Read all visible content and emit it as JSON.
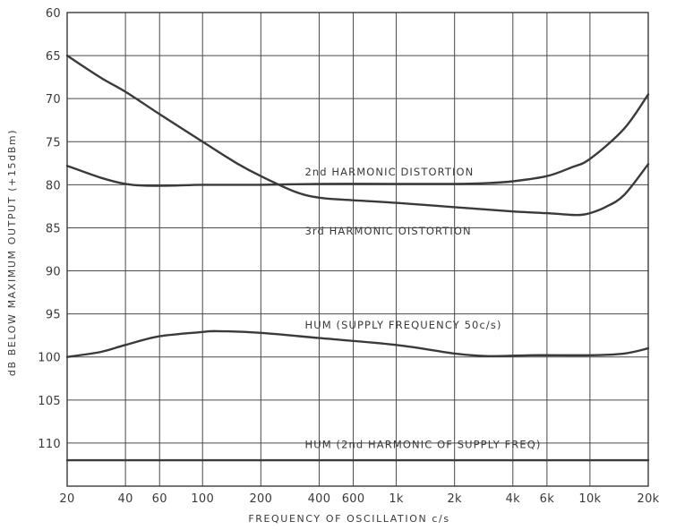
{
  "chart_data": {
    "type": "line",
    "title": "",
    "xlabel": "FREQUENCY  OF  OSCILLATION  c/s",
    "ylabel": "dB  BELOW  MAXIMUM  OUTPUT  (+15dBm)",
    "x_scale": "log",
    "xlim": [
      20,
      20000
    ],
    "ylim": [
      60,
      115
    ],
    "y_inverted": true,
    "grid": true,
    "x_ticks": [
      {
        "value": 20,
        "label": "20"
      },
      {
        "value": 40,
        "label": "40"
      },
      {
        "value": 60,
        "label": "60"
      },
      {
        "value": 100,
        "label": "100"
      },
      {
        "value": 200,
        "label": "200"
      },
      {
        "value": 400,
        "label": "400"
      },
      {
        "value": 600,
        "label": "600"
      },
      {
        "value": 1000,
        "label": "1k"
      },
      {
        "value": 2000,
        "label": "2k"
      },
      {
        "value": 4000,
        "label": "4k"
      },
      {
        "value": 6000,
        "label": "6k"
      },
      {
        "value": 10000,
        "label": "10k"
      },
      {
        "value": 20000,
        "label": "20k"
      }
    ],
    "y_ticks": [
      {
        "value": 60,
        "label": "60"
      },
      {
        "value": 65,
        "label": "65"
      },
      {
        "value": 70,
        "label": "70"
      },
      {
        "value": 75,
        "label": "75"
      },
      {
        "value": 80,
        "label": "80"
      },
      {
        "value": 85,
        "label": "85"
      },
      {
        "value": 90,
        "label": "90"
      },
      {
        "value": 95,
        "label": "95"
      },
      {
        "value": 100,
        "label": "100"
      },
      {
        "value": 105,
        "label": "105"
      },
      {
        "value": 110,
        "label": "110"
      }
    ],
    "series": [
      {
        "label": "2nd HARMONIC DISTORTION",
        "x": [
          20,
          30,
          40,
          50,
          70,
          100,
          200,
          400,
          1000,
          2000,
          3000,
          4000,
          6000,
          8000,
          10000,
          15000,
          20000
        ],
        "y": [
          77.8,
          79.2,
          79.9,
          80.1,
          80.1,
          80.0,
          80.0,
          79.9,
          79.9,
          79.9,
          79.8,
          79.6,
          79.0,
          78.0,
          77.0,
          73.5,
          69.5
        ]
      },
      {
        "label": "3rd HARMONIC OISTORTION",
        "x": [
          20,
          30,
          40,
          60,
          100,
          150,
          200,
          300,
          400,
          600,
          1000,
          2000,
          4000,
          6000,
          8000,
          9000,
          10000,
          12000,
          15000,
          20000
        ],
        "y": [
          65.0,
          67.6,
          69.2,
          71.8,
          75.0,
          77.5,
          79.0,
          80.8,
          81.5,
          81.8,
          82.1,
          82.6,
          83.1,
          83.3,
          83.5,
          83.5,
          83.3,
          82.6,
          81.2,
          77.6
        ]
      },
      {
        "label": "HUM  (SUPPLY FREQUENCY  50c/s)",
        "x": [
          20,
          30,
          40,
          60,
          100,
          120,
          200,
          400,
          1000,
          2000,
          3000,
          5000,
          10000,
          15000,
          20000
        ],
        "y": [
          100.0,
          99.4,
          98.6,
          97.6,
          97.1,
          97.0,
          97.2,
          97.8,
          98.6,
          99.6,
          99.9,
          99.8,
          99.8,
          99.6,
          99.0
        ]
      },
      {
        "label": "HUM  (2nd HARMONIC  OF  SUPPLY  FREQ)",
        "x": [
          20,
          20000
        ],
        "y": [
          112.0,
          112.0
        ]
      }
    ],
    "annotations": [
      {
        "text": "2nd HARMONIC DISTORTION",
        "x": 400,
        "y": 78.9
      },
      {
        "text": "3rd HARMONIC OISTORTION",
        "x": 400,
        "y": 85.8
      },
      {
        "text": "HUM  (SUPPLY FREQUENCY  50c/s)",
        "x": 400,
        "y": 96.7
      },
      {
        "text": "HUM  (2nd HARMONIC  OF  SUPPLY  FREQ)",
        "x": 400,
        "y": 110.6
      }
    ]
  }
}
